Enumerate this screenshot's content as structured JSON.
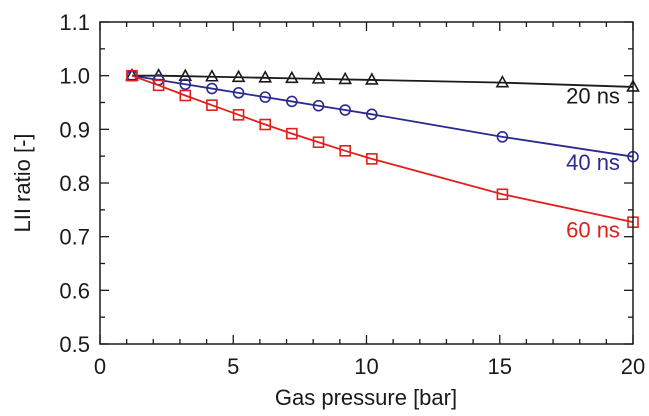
{
  "chart_data": {
    "type": "line",
    "title": "",
    "xlabel": "Gas pressure [bar]",
    "ylabel": "LII ratio [-]",
    "xlim": [
      0,
      20
    ],
    "ylim": [
      0.5,
      1.1
    ],
    "x_major_ticks": [
      0,
      5,
      10,
      15,
      20
    ],
    "x_tick_labels": [
      "0",
      "5",
      "10",
      "15",
      "20"
    ],
    "x_minor_step": 1,
    "y_major_ticks": [
      0.5,
      0.6,
      0.7,
      0.8,
      0.9,
      1.0,
      1.1
    ],
    "y_tick_labels": [
      "0.5",
      "0.6",
      "0.7",
      "0.8",
      "0.9",
      "1.0",
      "1.1"
    ],
    "y_minor_step": 0.05,
    "grid": false,
    "legend": "none",
    "series": [
      {
        "name": "20 ns",
        "color": "#1a1a1a",
        "marker": "triangle",
        "x": [
          1.2,
          2.2,
          3.2,
          4.2,
          5.2,
          6.2,
          7.2,
          8.2,
          9.2,
          10.2,
          15.1,
          20
        ],
        "y": [
          1.0,
          1.0,
          0.999,
          0.998,
          0.997,
          0.996,
          0.995,
          0.994,
          0.993,
          0.992,
          0.987,
          0.979
        ]
      },
      {
        "name": "40 ns",
        "color": "#2b2b8f",
        "marker": "circle",
        "x": [
          1.2,
          2.2,
          3.2,
          4.2,
          5.2,
          6.2,
          7.2,
          8.2,
          9.2,
          10.2,
          15.1,
          20
        ],
        "y": [
          1.0,
          0.992,
          0.984,
          0.976,
          0.968,
          0.96,
          0.952,
          0.944,
          0.936,
          0.928,
          0.886,
          0.849
        ]
      },
      {
        "name": "60 ns",
        "color": "#e0201c",
        "marker": "square",
        "x": [
          1.2,
          2.2,
          3.2,
          4.2,
          5.2,
          6.2,
          7.2,
          8.2,
          9.2,
          10.2,
          15.1,
          20
        ],
        "y": [
          1.0,
          0.982,
          0.963,
          0.945,
          0.927,
          0.909,
          0.892,
          0.876,
          0.86,
          0.845,
          0.779,
          0.727
        ]
      }
    ],
    "annotations": [
      {
        "text": "20 ns",
        "series": "20 ns",
        "x": 18.5,
        "y": 0.948
      },
      {
        "text": "40 ns",
        "series": "40 ns",
        "x": 18.5,
        "y": 0.824
      },
      {
        "text": "60 ns",
        "series": "60 ns",
        "x": 18.5,
        "y": 0.698
      }
    ]
  }
}
